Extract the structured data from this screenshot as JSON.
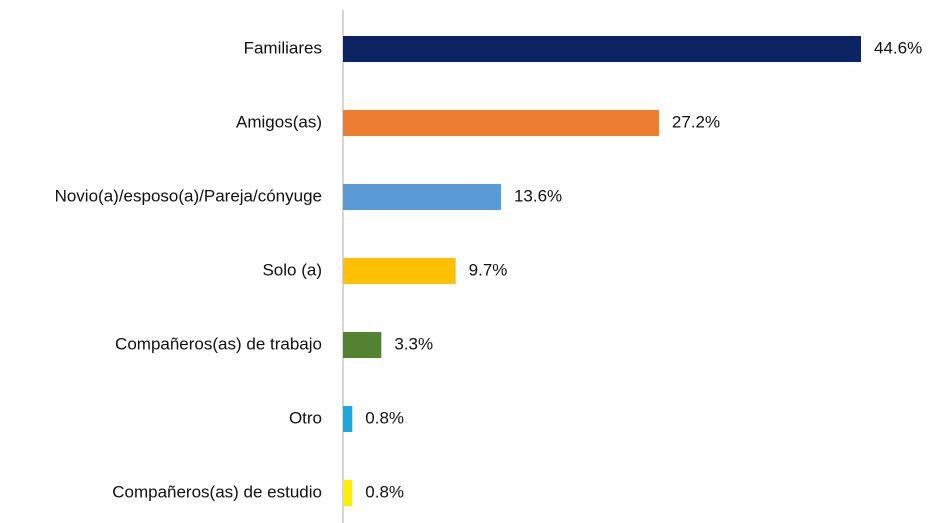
{
  "chart_data": {
    "type": "bar",
    "orientation": "horizontal",
    "categories": [
      "Familiares",
      "Amigos(as)",
      "Novio(a)/esposo(a)/Pareja/cónyuge",
      "Solo (a)",
      "Compañeros(as) de trabajo",
      "Otro",
      "Compañeros(as) de estudio"
    ],
    "values": [
      44.6,
      27.2,
      13.6,
      9.7,
      3.3,
      0.8,
      0.8
    ],
    "value_labels": [
      "44.6%",
      "27.2%",
      "13.6%",
      "9.7%",
      "3.3%",
      "0.8%",
      "0.8%"
    ],
    "colors": [
      "#0c2461",
      "#ed7d31",
      "#5b9bd5",
      "#ffc000",
      "#548235",
      "#1ba8e0",
      "#ffee00"
    ]
  }
}
